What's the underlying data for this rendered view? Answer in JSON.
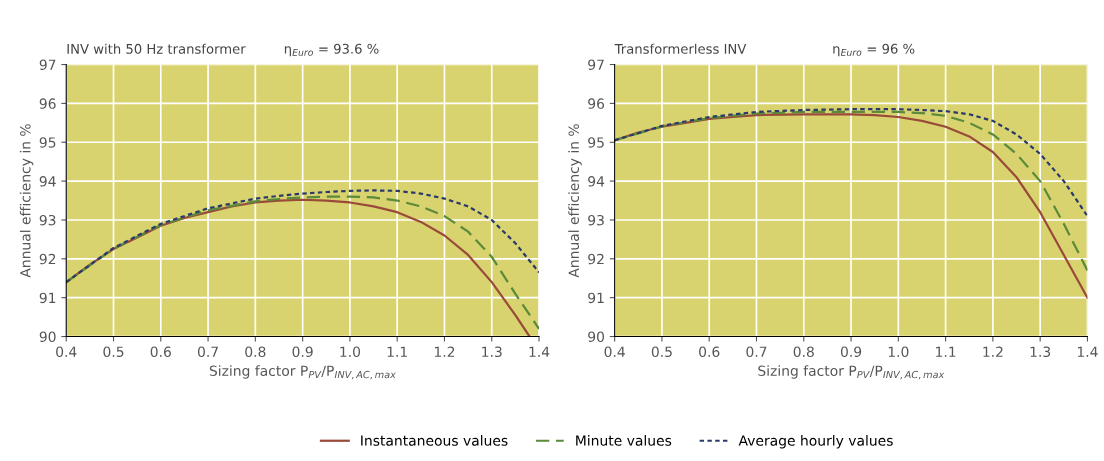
{
  "chart_data": [
    {
      "type": "line",
      "title": "INV with 50 Hz transformer",
      "subtitle": "η$_{Euro}$ = 93.6 %",
      "xlabel": "Sizing factor P$_{PV}$/P$_{INV,AC,max}$",
      "ylabel": "Annual efficiency in %",
      "xlim": [
        0.4,
        1.4
      ],
      "xticks": [
        {
          "value": 0.4,
          "label": "0.4"
        },
        {
          "value": 0.5,
          "label": "0.5"
        },
        {
          "value": 0.6,
          "label": "0.6"
        },
        {
          "value": 0.7,
          "label": "0.7"
        },
        {
          "value": 0.8,
          "label": "0.8"
        },
        {
          "value": 0.9,
          "label": "0.9"
        },
        {
          "value": 1.0,
          "label": "1.0"
        },
        {
          "value": 1.1,
          "label": "1.1"
        },
        {
          "value": 1.2,
          "label": "1.2"
        },
        {
          "value": 1.3,
          "label": "1.3"
        },
        {
          "value": 1.4,
          "label": "1.4"
        }
      ],
      "ylim": [
        90,
        97
      ],
      "yticks": [
        90,
        91,
        92,
        93,
        94,
        95,
        96,
        97
      ],
      "grid": true,
      "legend": "bottom",
      "marker": "none",
      "series": [
        {
          "name": "Instantaneous values",
          "color": "#9a4a3a",
          "line_style": "solid",
          "x": [
            0.4,
            0.45,
            0.5,
            0.55,
            0.6,
            0.65,
            0.7,
            0.75,
            0.8,
            0.85,
            0.9,
            0.95,
            1.0,
            1.05,
            1.1,
            1.15,
            1.2,
            1.25,
            1.3,
            1.35,
            1.38
          ],
          "values": [
            91.4,
            91.85,
            92.25,
            92.55,
            92.85,
            93.05,
            93.2,
            93.35,
            93.45,
            93.5,
            93.52,
            93.5,
            93.45,
            93.35,
            93.2,
            92.95,
            92.6,
            92.1,
            91.4,
            90.55,
            90.0
          ]
        },
        {
          "name": "Minute values",
          "color": "#5a8a3a",
          "line_style": "dashed",
          "x": [
            0.4,
            0.5,
            0.6,
            0.7,
            0.8,
            0.85,
            0.9,
            0.95,
            1.0,
            1.05,
            1.1,
            1.15,
            1.2,
            1.25,
            1.3,
            1.35,
            1.4
          ],
          "values": [
            91.4,
            92.26,
            92.87,
            93.25,
            93.48,
            93.54,
            93.58,
            93.6,
            93.6,
            93.58,
            93.5,
            93.35,
            93.1,
            92.7,
            92.05,
            91.1,
            90.2
          ]
        },
        {
          "name": "Average hourly values",
          "color": "#2a3a6a",
          "line_style": "dotted",
          "x": [
            0.4,
            0.5,
            0.6,
            0.7,
            0.8,
            0.85,
            0.9,
            0.95,
            1.0,
            1.05,
            1.1,
            1.15,
            1.2,
            1.25,
            1.3,
            1.35,
            1.4
          ],
          "values": [
            91.4,
            92.28,
            92.9,
            93.3,
            93.55,
            93.62,
            93.68,
            93.72,
            93.75,
            93.76,
            93.75,
            93.68,
            93.55,
            93.35,
            93.0,
            92.4,
            91.65
          ]
        }
      ]
    },
    {
      "type": "line",
      "title": "Transformerless INV",
      "subtitle": "η$_{Euro}$ = 96 %",
      "xlabel": "Sizing factor P$_{PV}$/P$_{INV,AC,max}$",
      "ylabel": "Annual efficiency in %",
      "xlim": [
        0.4,
        1.4
      ],
      "xticks": [
        {
          "value": 0.4,
          "label": "0.4"
        },
        {
          "value": 0.5,
          "label": "0.5"
        },
        {
          "value": 0.6,
          "label": "0.6"
        },
        {
          "value": 0.7,
          "label": "0.7"
        },
        {
          "value": 0.8,
          "label": "0.8"
        },
        {
          "value": 0.9,
          "label": "0.9"
        },
        {
          "value": 1.0,
          "label": "1.0"
        },
        {
          "value": 1.1,
          "label": "1.1"
        },
        {
          "value": 1.2,
          "label": "1.2"
        },
        {
          "value": 1.3,
          "label": "1.3"
        },
        {
          "value": 1.4,
          "label": "1.4"
        }
      ],
      "ylim": [
        90,
        97
      ],
      "yticks": [
        90,
        91,
        92,
        93,
        94,
        95,
        96,
        97
      ],
      "grid": true,
      "marker": "none",
      "series": [
        {
          "color": "#9a4a3a",
          "line_style": "solid",
          "x": [
            0.4,
            0.45,
            0.5,
            0.55,
            0.6,
            0.65,
            0.7,
            0.8,
            0.9,
            0.95,
            1.0,
            1.05,
            1.1,
            1.15,
            1.2,
            1.25,
            1.3,
            1.35,
            1.4
          ],
          "values": [
            95.05,
            95.25,
            95.4,
            95.5,
            95.6,
            95.65,
            95.7,
            95.72,
            95.72,
            95.7,
            95.65,
            95.55,
            95.4,
            95.15,
            94.75,
            94.1,
            93.2,
            92.1,
            91.0
          ]
        },
        {
          "color": "#5a8a3a",
          "line_style": "dashed",
          "x": [
            0.4,
            0.5,
            0.6,
            0.7,
            0.8,
            0.9,
            1.0,
            1.05,
            1.1,
            1.15,
            1.2,
            1.25,
            1.3,
            1.35,
            1.4
          ],
          "values": [
            95.05,
            95.41,
            95.62,
            95.74,
            95.78,
            95.78,
            95.78,
            95.75,
            95.68,
            95.5,
            95.2,
            94.7,
            94.0,
            92.9,
            91.7
          ]
        },
        {
          "color": "#2a3a6a",
          "line_style": "dotted",
          "x": [
            0.4,
            0.5,
            0.6,
            0.7,
            0.8,
            0.9,
            1.0,
            1.05,
            1.1,
            1.15,
            1.2,
            1.25,
            1.3,
            1.35,
            1.4
          ],
          "values": [
            95.05,
            95.42,
            95.65,
            95.78,
            95.83,
            95.85,
            95.85,
            95.83,
            95.8,
            95.72,
            95.55,
            95.2,
            94.7,
            94.0,
            93.1
          ]
        }
      ]
    }
  ]
}
